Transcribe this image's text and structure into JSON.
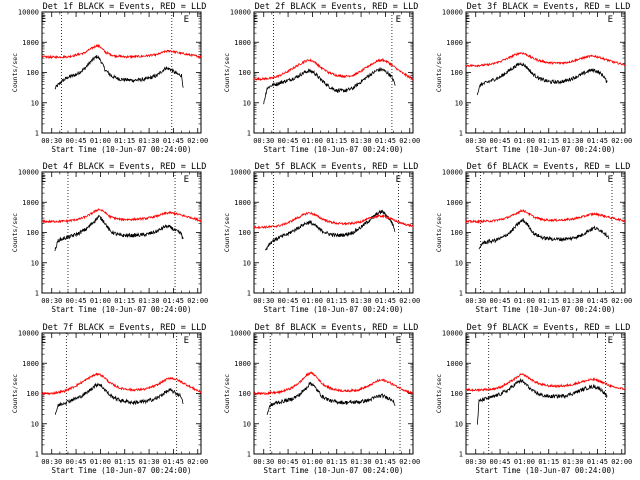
{
  "chart_data": {
    "type": "line",
    "grid": false,
    "y_scale": "log",
    "ylim": [
      1,
      10000
    ],
    "y_ticks": [
      "1",
      "10",
      "100",
      "1000",
      "10000"
    ],
    "x_ticks": [
      "00:30",
      "00:45",
      "01:00",
      "01:15",
      "01:30",
      "01:45",
      "02:00"
    ],
    "x_tick_minutes": [
      30,
      45,
      60,
      75,
      90,
      105,
      120
    ],
    "xlim_minutes": [
      24,
      122
    ],
    "xlabel": "Start Time (10-Jun-07 00:24:00)",
    "ylabel": "Counts/sec",
    "series_colors": {
      "events": "#000000",
      "lld": "#ff0000"
    },
    "panels": [
      {
        "title": "Det 1f BLACK = Events, RED = LLD",
        "markers": [
          {
            "label": "E",
            "minute": 25
          },
          {
            "label": "E",
            "minute": 113
          }
        ],
        "vlines_minutes": [
          36,
          104
        ],
        "series": [
          {
            "key": "events",
            "x": [
              32,
              36,
              40,
              45,
              50,
              55,
              58,
              60,
              63,
              67,
              72,
              80,
              88,
              95,
              100,
              103,
              107,
              110,
              111
            ],
            "y": [
              30,
              50,
              70,
              85,
              130,
              260,
              340,
              260,
              120,
              75,
              60,
              55,
              60,
              80,
              140,
              130,
              90,
              80,
              35
            ]
          },
          {
            "key": "lld",
            "x": [
              24,
              30,
              40,
              50,
              55,
              58,
              60,
              63,
              68,
              75,
              85,
              95,
              100,
              103,
              108,
              113,
              118,
              122
            ],
            "y": [
              330,
              320,
              330,
              440,
              650,
              780,
              700,
              470,
              360,
              330,
              340,
              390,
              500,
              520,
              450,
              400,
              360,
              330
            ]
          }
        ]
      },
      {
        "title": "Det 2f BLACK = Events, RED = LLD",
        "markers": [
          {
            "label": "E",
            "minute": 25
          },
          {
            "label": "E",
            "minute": 113
          }
        ],
        "vlines_minutes": [
          36,
          109
        ],
        "series": [
          {
            "key": "events",
            "x": [
              30,
              32,
              35,
              40,
              45,
              50,
              55,
              58,
              61,
              65,
              70,
              75,
              80,
              85,
              90,
              95,
              100,
              103,
              106,
              109,
              111
            ],
            "y": [
              10,
              30,
              38,
              45,
              55,
              70,
              100,
              115,
              100,
              60,
              35,
              25,
              25,
              30,
              50,
              80,
              120,
              125,
              100,
              70,
              40
            ]
          },
          {
            "key": "lld",
            "x": [
              24,
              30,
              35,
              40,
              45,
              50,
              55,
              58,
              61,
              65,
              70,
              75,
              80,
              85,
              90,
              95,
              100,
              103,
              106,
              110,
              115,
              122
            ],
            "y": [
              60,
              62,
              65,
              80,
              110,
              160,
              230,
              260,
              230,
              150,
              100,
              80,
              75,
              80,
              110,
              170,
              240,
              260,
              230,
              160,
              100,
              60
            ]
          }
        ]
      },
      {
        "title": "Det 3f BLACK = Events, RED = LLD",
        "markers": [
          {
            "label": "E",
            "minute": 25
          },
          {
            "label": "E",
            "minute": 113
          }
        ],
        "vlines_minutes": [],
        "series": [
          {
            "key": "events",
            "x": [
              31,
              33,
              36,
              40,
              45,
              50,
              55,
              58,
              61,
              65,
              70,
              75,
              80,
              85,
              90,
              95,
              100,
              103,
              106,
              109,
              111
            ],
            "y": [
              20,
              40,
              45,
              55,
              70,
              110,
              170,
              200,
              160,
              90,
              60,
              50,
              48,
              52,
              65,
              85,
              115,
              120,
              100,
              75,
              45
            ]
          },
          {
            "key": "lld",
            "x": [
              24,
              30,
              35,
              40,
              45,
              50,
              55,
              58,
              61,
              65,
              70,
              75,
              80,
              85,
              90,
              95,
              100,
              103,
              106,
              110,
              115,
              122
            ],
            "y": [
              170,
              170,
              175,
              190,
              230,
              300,
              400,
              450,
              400,
              300,
              240,
              210,
              205,
              210,
              240,
              290,
              340,
              350,
              320,
              270,
              220,
              180
            ]
          }
        ]
      },
      {
        "title": "Det 4f BLACK = Events, RED = LLD",
        "markers": [
          {
            "label": "E",
            "minute": 25
          },
          {
            "label": "E",
            "minute": 113
          }
        ],
        "vlines_minutes": [
          40,
          106
        ],
        "series": [
          {
            "key": "events",
            "x": [
              32,
              34,
              38,
              42,
              47,
              52,
              56,
              59,
              62,
              66,
              72,
              80,
              88,
              95,
              100,
              103,
              107,
              110,
              111
            ],
            "y": [
              25,
              55,
              65,
              75,
              95,
              140,
              230,
              340,
              240,
              110,
              80,
              80,
              85,
              110,
              160,
              150,
              110,
              90,
              55
            ]
          },
          {
            "key": "lld",
            "x": [
              24,
              30,
              40,
              47,
              52,
              56,
              59,
              62,
              66,
              72,
              80,
              88,
              95,
              100,
              103,
              107,
              112,
              118,
              122
            ],
            "y": [
              230,
              230,
              240,
              280,
              350,
              480,
              590,
              500,
              330,
              270,
              270,
              290,
              350,
              430,
              450,
              410,
              350,
              290,
              240
            ]
          }
        ]
      },
      {
        "title": "Det 5f BLACK = Events, RED = LLD",
        "markers": [
          {
            "label": "E",
            "minute": 25
          },
          {
            "label": "E",
            "minute": 113
          }
        ],
        "vlines_minutes": [
          36,
          113
        ],
        "series": [
          {
            "key": "events",
            "x": [
              31,
              33,
              36,
              40,
              45,
              50,
              55,
              58,
              61,
              65,
              70,
              75,
              80,
              85,
              90,
              95,
              100,
              103,
              106,
              109,
              111
            ],
            "y": [
              25,
              40,
              55,
              70,
              90,
              130,
              190,
              220,
              180,
              120,
              90,
              80,
              85,
              100,
              150,
              250,
              420,
              500,
              350,
              220,
              110
            ]
          },
          {
            "key": "lld",
            "x": [
              24,
              30,
              35,
              40,
              45,
              50,
              55,
              58,
              61,
              65,
              70,
              75,
              80,
              85,
              90,
              95,
              100,
              103,
              106,
              110,
              115,
              122
            ],
            "y": [
              150,
              150,
              155,
              170,
              210,
              290,
              400,
              450,
              400,
              300,
              230,
              200,
              195,
              200,
              230,
              290,
              340,
              350,
              320,
              260,
              200,
              160
            ]
          }
        ]
      },
      {
        "title": "Det 6f BLACK = Events, RED = LLD",
        "markers": [
          {
            "label": "E",
            "minute": 25
          },
          {
            "label": "E",
            "minute": 113
          }
        ],
        "vlines_minutes": [
          33,
          114
        ],
        "series": [
          {
            "key": "events",
            "x": [
              32,
              34,
              38,
              42,
              47,
              52,
              56,
              59,
              62,
              66,
              72,
              80,
              88,
              95,
              100,
              103,
              107,
              110,
              112
            ],
            "y": [
              25,
              45,
              50,
              55,
              70,
              110,
              190,
              260,
              180,
              90,
              65,
              60,
              62,
              80,
              120,
              140,
              120,
              90,
              70
            ]
          },
          {
            "key": "lld",
            "x": [
              24,
              30,
              40,
              47,
              52,
              56,
              59,
              62,
              66,
              72,
              80,
              88,
              95,
              100,
              103,
              107,
              112,
              118,
              122
            ],
            "y": [
              230,
              230,
              240,
              280,
              350,
              460,
              540,
              450,
              320,
              260,
              255,
              270,
              320,
              390,
              410,
              380,
              320,
              270,
              240
            ]
          }
        ]
      },
      {
        "title": "Det 7f BLACK = Events, RED = LLD",
        "markers": [
          {
            "label": "E",
            "minute": 25
          },
          {
            "label": "E",
            "minute": 113
          }
        ],
        "vlines_minutes": [
          39,
          107
        ],
        "series": [
          {
            "key": "events",
            "x": [
              32,
              34,
              38,
              42,
              47,
              52,
              56,
              59,
              62,
              66,
              72,
              80,
              88,
              95,
              100,
              103,
              107,
              110,
              111
            ],
            "y": [
              20,
              40,
              50,
              60,
              75,
              110,
              170,
              210,
              150,
              85,
              60,
              50,
              55,
              70,
              110,
              130,
              100,
              80,
              40
            ]
          },
          {
            "key": "lld",
            "x": [
              24,
              30,
              38,
              44,
              50,
              55,
              59,
              62,
              66,
              72,
              80,
              88,
              95,
              100,
              103,
              107,
              112,
              118,
              122
            ],
            "y": [
              100,
              100,
              120,
              170,
              260,
              380,
              450,
              360,
              220,
              150,
              130,
              140,
              190,
              280,
              330,
              290,
              210,
              140,
              110
            ]
          }
        ]
      },
      {
        "title": "Det 8f BLACK = Events, RED = LLD",
        "markers": [
          {
            "label": "E",
            "minute": 25
          },
          {
            "label": "E",
            "minute": 113
          }
        ],
        "vlines_minutes": [
          34,
          114
        ],
        "series": [
          {
            "key": "events",
            "x": [
              32,
              34,
              38,
              42,
              47,
              52,
              56,
              59,
              62,
              66,
              72,
              80,
              88,
              95,
              100,
              103,
              107,
              110,
              111
            ],
            "y": [
              20,
              40,
              50,
              55,
              65,
              90,
              150,
              230,
              150,
              80,
              55,
              50,
              52,
              60,
              80,
              85,
              70,
              60,
              35
            ]
          },
          {
            "key": "lld",
            "x": [
              24,
              30,
              40,
              47,
              52,
              56,
              59,
              62,
              66,
              72,
              80,
              88,
              95,
              100,
              103,
              107,
              112,
              118,
              122
            ],
            "y": [
              100,
              100,
              110,
              150,
              230,
              380,
              500,
              380,
              210,
              140,
              120,
              130,
              180,
              260,
              280,
              240,
              170,
              120,
              100
            ]
          }
        ]
      },
      {
        "title": "Det 9f BLACK = Events, RED = LLD",
        "markers": [
          {
            "label": "E",
            "minute": 25
          },
          {
            "label": "E",
            "minute": 113
          }
        ],
        "vlines_minutes": [
          38,
          110
        ],
        "series": [
          {
            "key": "events",
            "x": [
              31,
              32,
              35,
              40,
              45,
              50,
              55,
              58,
              61,
              65,
              70,
              75,
              80,
              85,
              90,
              95,
              100,
              103,
              106,
              109,
              111
            ],
            "y": [
              10,
              55,
              65,
              75,
              95,
              130,
              220,
              270,
              200,
              120,
              90,
              80,
              80,
              85,
              100,
              130,
              160,
              170,
              150,
              110,
              80
            ]
          },
          {
            "key": "lld",
            "x": [
              24,
              30,
              35,
              40,
              45,
              50,
              55,
              58,
              61,
              65,
              70,
              75,
              80,
              85,
              90,
              95,
              100,
              103,
              106,
              110,
              115,
              122
            ],
            "y": [
              130,
              130,
              135,
              140,
              160,
              220,
              330,
              430,
              380,
              270,
              200,
              180,
              175,
              180,
              200,
              240,
              280,
              290,
              260,
              210,
              160,
              140
            ]
          }
        ]
      }
    ]
  }
}
